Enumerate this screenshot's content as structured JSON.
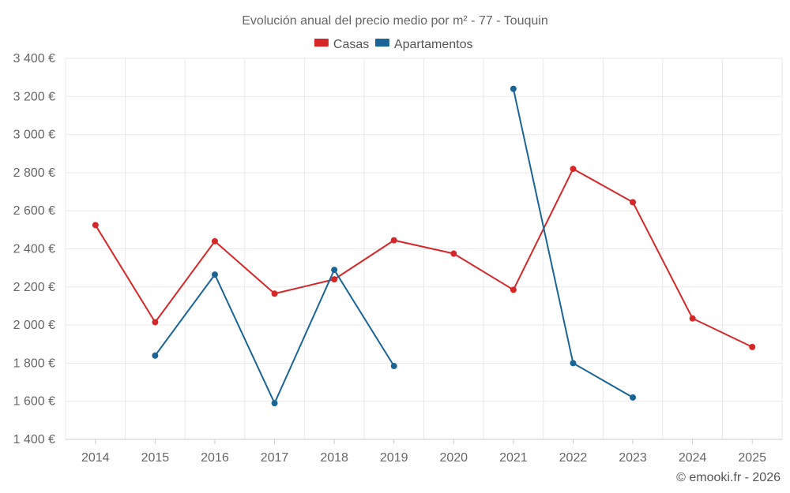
{
  "chart_data": {
    "type": "line",
    "title": "Evolución anual del precio medio por m² - 77 - Touquin",
    "xlabel": "",
    "ylabel": "",
    "categories": [
      "2014",
      "2015",
      "2016",
      "2017",
      "2018",
      "2019",
      "2020",
      "2021",
      "2022",
      "2023",
      "2024",
      "2025"
    ],
    "ylim": [
      1400,
      3400
    ],
    "yticks": [
      1400,
      1600,
      1800,
      2000,
      2200,
      2400,
      2600,
      2800,
      3000,
      3200,
      3400
    ],
    "ytick_labels": [
      "1 400 €",
      "1 600 €",
      "1 800 €",
      "2 000 €",
      "2 200 €",
      "2 400 €",
      "2 600 €",
      "2 800 €",
      "3 000 €",
      "3 200 €",
      "3 400 €"
    ],
    "grid": true,
    "legend_position": "top-center",
    "series": [
      {
        "name": "Casas",
        "color": "#d62728",
        "values": [
          2525,
          2015,
          2440,
          2165,
          2240,
          2445,
          2375,
          2185,
          2820,
          2645,
          2035,
          1885
        ]
      },
      {
        "name": "Apartamentos",
        "color": "#1a6496",
        "values": [
          null,
          1840,
          2265,
          1590,
          2290,
          1785,
          null,
          3240,
          1800,
          1620,
          null,
          null
        ]
      }
    ]
  },
  "credit": "© emooki.fr - 2026"
}
